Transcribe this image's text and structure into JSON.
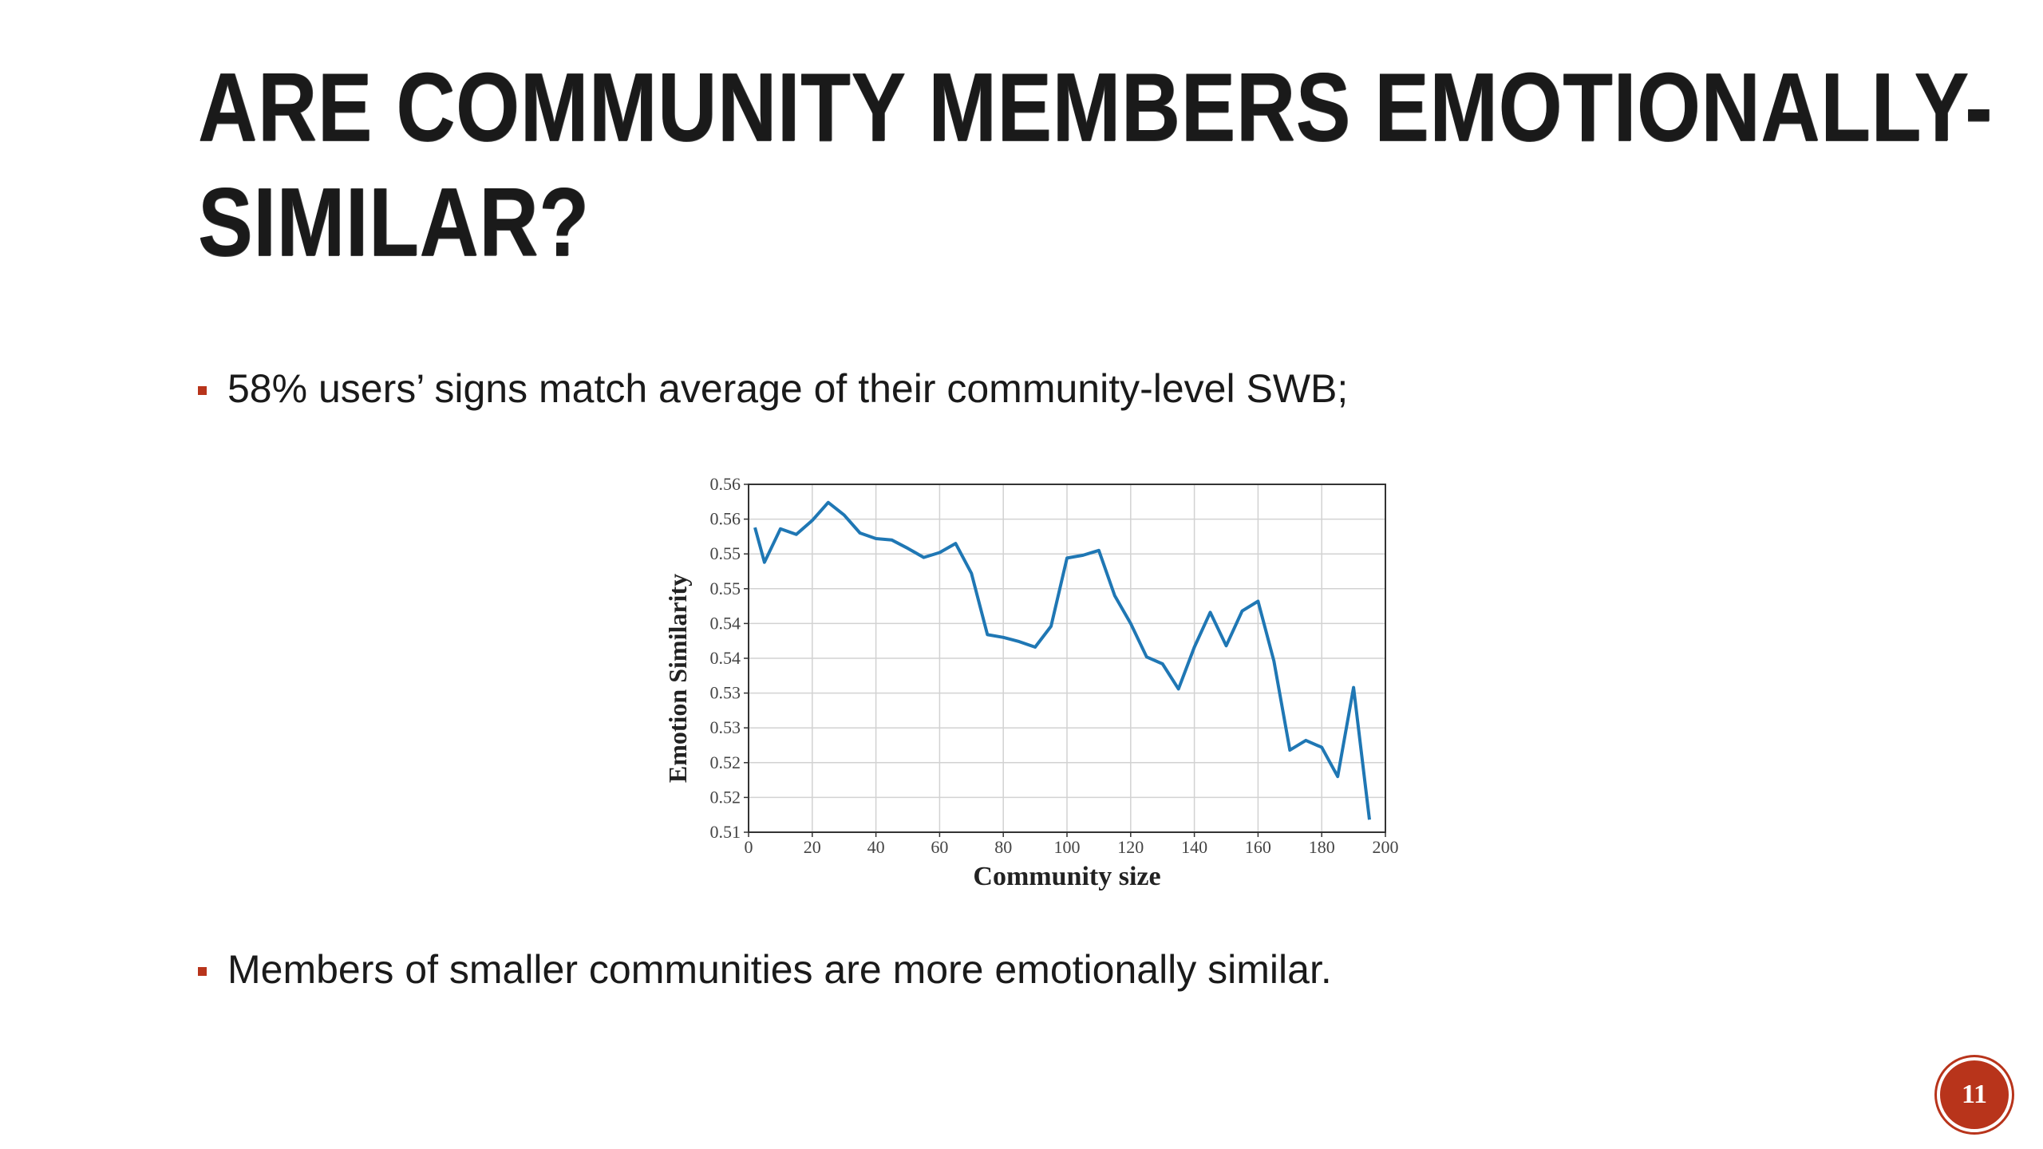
{
  "slide": {
    "title_lines": [
      "Are community members emotionally-",
      "similar?"
    ],
    "bullets": [
      "58% users’ signs match average of their community-level SWB;",
      "Members of smaller communities are more emotionally similar."
    ],
    "page_number": "11",
    "accent_color": "#b8341b"
  },
  "chart_data": {
    "type": "line",
    "title": "",
    "xlabel": "Community size",
    "ylabel": "Emotion Similarity",
    "xlim": [
      0,
      200
    ],
    "ylim": [
      0.51,
      0.56
    ],
    "x_ticks": [
      0,
      20,
      40,
      60,
      80,
      100,
      120,
      140,
      160,
      180,
      200
    ],
    "y_tick_labels": [
      "0.51",
      "0.52",
      "0.52",
      "0.53",
      "0.53",
      "0.54",
      "0.54",
      "0.55",
      "0.55",
      "0.56",
      "0.56"
    ],
    "grid": true,
    "line_color": "#1f77b4",
    "series": [
      {
        "x": [
          2,
          5,
          10,
          15,
          20,
          25,
          30,
          35,
          40,
          45,
          50,
          55,
          60,
          65,
          70,
          75,
          80,
          85,
          90,
          95,
          100,
          105,
          110,
          115,
          120,
          125,
          130,
          135,
          140,
          145,
          150,
          155,
          160,
          165,
          170,
          175,
          180,
          185,
          190,
          195
        ],
        "y": [
          0.5538,
          0.5488,
          0.5536,
          0.5528,
          0.5548,
          0.5574,
          0.5556,
          0.553,
          0.5522,
          0.552,
          0.5508,
          0.5495,
          0.5502,
          0.5515,
          0.5472,
          0.5384,
          0.538,
          0.5374,
          0.5366,
          0.5396,
          0.5494,
          0.5498,
          0.5505,
          0.544,
          0.54,
          0.5352,
          0.5342,
          0.5306,
          0.5366,
          0.5416,
          0.5368,
          0.5418,
          0.5432,
          0.5346,
          0.5218,
          0.5232,
          0.5222,
          0.518,
          0.5308,
          0.5118
        ]
      }
    ]
  }
}
